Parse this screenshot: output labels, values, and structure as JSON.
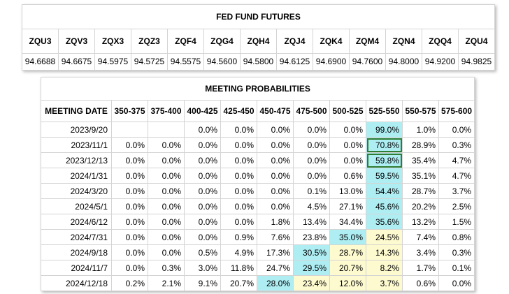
{
  "futures": {
    "title": "FED FUND FUTURES",
    "codes": [
      "ZQU3",
      "ZQV3",
      "ZQX3",
      "ZQZ3",
      "ZQF4",
      "ZQG4",
      "ZQH4",
      "ZQJ4",
      "ZQK4",
      "ZQM4",
      "ZQN4",
      "ZQQ4",
      "ZQU4"
    ],
    "prices": [
      "94.6688",
      "94.6675",
      "94.5975",
      "94.5725",
      "94.5575",
      "94.5600",
      "94.5800",
      "94.6125",
      "94.6900",
      "94.7600",
      "94.8000",
      "94.9200",
      "94.9825"
    ]
  },
  "probabilities": {
    "title": "MEETING PROBABILITIES",
    "headers": [
      "MEETING DATE",
      "350-375",
      "375-400",
      "400-425",
      "425-450",
      "450-475",
      "475-500",
      "500-525",
      "525-550",
      "550-575",
      "575-600"
    ],
    "rows": [
      {
        "date": "2023/9/20",
        "values": [
          "",
          "",
          "0.0%",
          "0.0%",
          "0.0%",
          "0.0%",
          "0.0%",
          "99.0%",
          "1.0%",
          "0.0%"
        ]
      },
      {
        "date": "2023/11/1",
        "values": [
          "0.0%",
          "0.0%",
          "0.0%",
          "0.0%",
          "0.0%",
          "0.0%",
          "0.0%",
          "70.8%",
          "28.9%",
          "0.3%"
        ]
      },
      {
        "date": "2023/12/13",
        "values": [
          "0.0%",
          "0.0%",
          "0.0%",
          "0.0%",
          "0.0%",
          "0.0%",
          "0.0%",
          "59.8%",
          "35.4%",
          "4.7%"
        ]
      },
      {
        "date": "2024/1/31",
        "values": [
          "0.0%",
          "0.0%",
          "0.0%",
          "0.0%",
          "0.0%",
          "0.0%",
          "0.6%",
          "59.5%",
          "35.1%",
          "4.7%"
        ]
      },
      {
        "date": "2024/3/20",
        "values": [
          "0.0%",
          "0.0%",
          "0.0%",
          "0.0%",
          "0.0%",
          "0.1%",
          "13.0%",
          "54.4%",
          "28.7%",
          "3.7%"
        ]
      },
      {
        "date": "2024/5/1",
        "values": [
          "0.0%",
          "0.0%",
          "0.0%",
          "0.0%",
          "0.0%",
          "4.5%",
          "27.1%",
          "45.6%",
          "20.2%",
          "2.5%"
        ]
      },
      {
        "date": "2024/6/12",
        "values": [
          "0.0%",
          "0.0%",
          "0.0%",
          "0.0%",
          "1.8%",
          "13.4%",
          "34.4%",
          "35.6%",
          "13.2%",
          "1.5%"
        ]
      },
      {
        "date": "2024/7/31",
        "values": [
          "0.0%",
          "0.0%",
          "0.0%",
          "0.9%",
          "7.6%",
          "23.8%",
          "35.0%",
          "24.5%",
          "7.4%",
          "0.8%"
        ]
      },
      {
        "date": "2024/9/18",
        "values": [
          "0.0%",
          "0.0%",
          "0.5%",
          "4.9%",
          "17.3%",
          "30.5%",
          "28.7%",
          "14.3%",
          "3.4%",
          "0.3%"
        ]
      },
      {
        "date": "2024/11/7",
        "values": [
          "0.0%",
          "0.3%",
          "3.0%",
          "11.8%",
          "24.7%",
          "29.5%",
          "20.7%",
          "8.2%",
          "1.7%",
          "0.1%"
        ]
      },
      {
        "date": "2024/12/18",
        "values": [
          "0.2%",
          "2.1%",
          "9.1%",
          "20.7%",
          "28.0%",
          "23.4%",
          "12.0%",
          "3.7%",
          "0.6%",
          "0.0%"
        ]
      }
    ],
    "highlights": {
      "cyan": [
        [
          0,
          7
        ],
        [
          1,
          7
        ],
        [
          2,
          7
        ],
        [
          3,
          7
        ],
        [
          4,
          7
        ],
        [
          5,
          7
        ],
        [
          6,
          7
        ],
        [
          7,
          6
        ],
        [
          8,
          5
        ],
        [
          9,
          5
        ],
        [
          10,
          4
        ]
      ],
      "yellow": [
        [
          7,
          7
        ],
        [
          8,
          6
        ],
        [
          8,
          7
        ],
        [
          9,
          6
        ],
        [
          9,
          7
        ],
        [
          10,
          5
        ],
        [
          10,
          6
        ],
        [
          10,
          7
        ]
      ],
      "boxed": [
        [
          1,
          7
        ],
        [
          2,
          7
        ]
      ]
    },
    "colors": {
      "cyan": "#aeeef3",
      "yellow": "#fdfad0",
      "box": "#2e7d32"
    }
  }
}
